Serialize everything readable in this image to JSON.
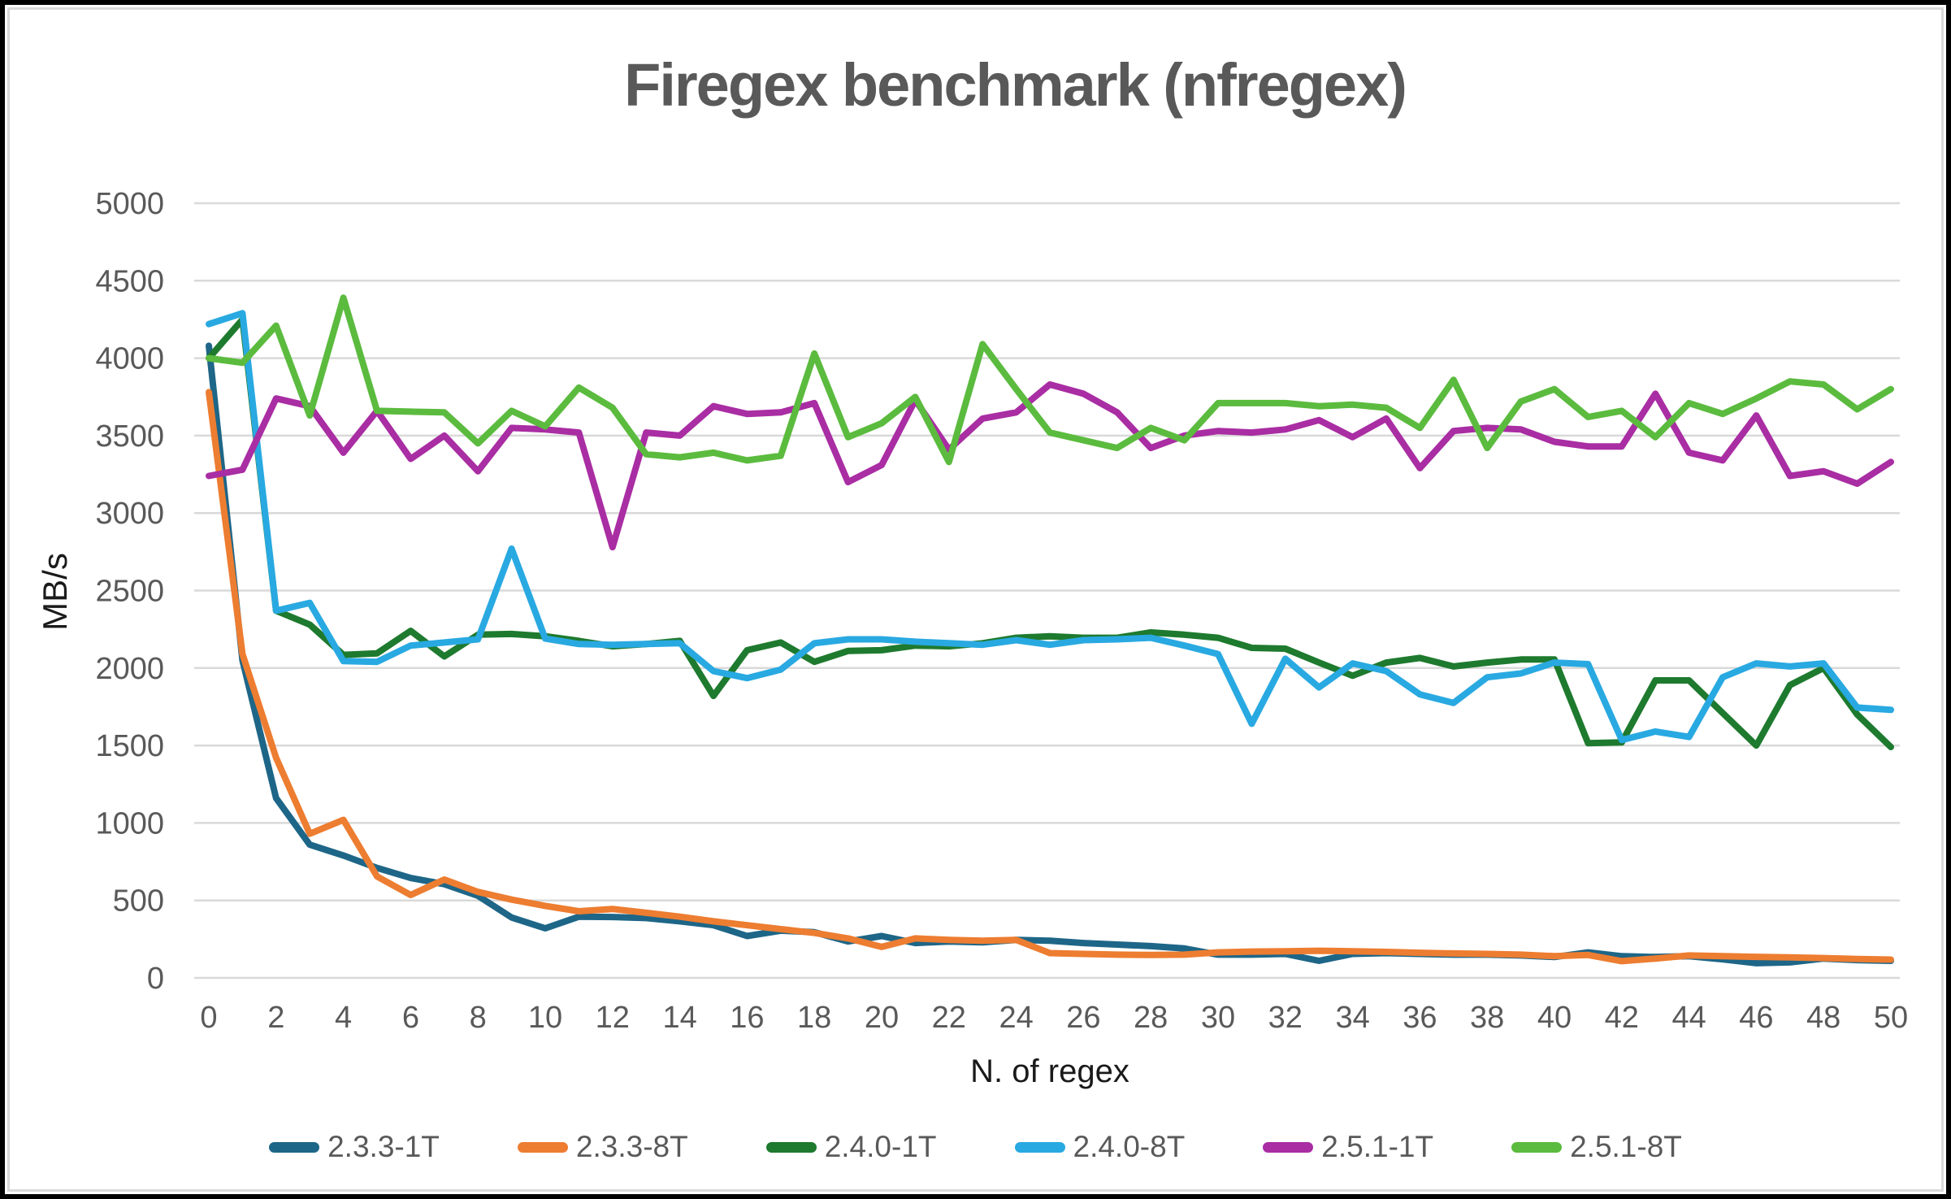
{
  "chart_data": {
    "type": "line",
    "title": "Firegex benchmark (nfregex)",
    "xlabel": "N. of regex",
    "ylabel": "MB/s",
    "x_range": [
      0,
      50
    ],
    "x_tick_step": 2,
    "ylim": [
      0,
      5000
    ],
    "y_tick_step": 500,
    "grid": "horizontal",
    "legend_position": "bottom",
    "gridline_color": "#d9d9d9",
    "tick_label_color": "#595959",
    "title_color": "#595959",
    "series": [
      {
        "name": "2.3.3-1T",
        "color": "#1E6687",
        "values": [
          4080,
          2050,
          1160,
          860,
          790,
          710,
          645,
          605,
          530,
          390,
          320,
          395,
          393,
          386,
          365,
          340,
          270,
          305,
          295,
          235,
          270,
          225,
          235,
          230,
          245,
          240,
          225,
          215,
          205,
          190,
          150,
          150,
          155,
          110,
          155,
          160,
          155,
          150,
          150,
          145,
          135,
          165,
          140,
          135,
          140,
          120,
          95,
          100,
          125,
          115,
          110
        ]
      },
      {
        "name": "2.3.3-8T",
        "color": "#ED7D31",
        "values": [
          3780,
          2090,
          1420,
          930,
          1020,
          655,
          535,
          635,
          555,
          505,
          465,
          430,
          445,
          420,
          395,
          365,
          340,
          315,
          290,
          255,
          200,
          255,
          245,
          240,
          245,
          160,
          155,
          150,
          148,
          150,
          165,
          170,
          172,
          175,
          172,
          168,
          162,
          158,
          155,
          150,
          140,
          148,
          108,
          125,
          145,
          140,
          136,
          132,
          128,
          122,
          118
        ]
      },
      {
        "name": "2.4.0-1T",
        "color": "#1E7A2E",
        "values": [
          4000,
          4250,
          2370,
          2280,
          2085,
          2095,
          2240,
          2075,
          2215,
          2220,
          2205,
          2175,
          2140,
          2155,
          2175,
          1820,
          2115,
          2165,
          2040,
          2110,
          2115,
          2145,
          2140,
          2160,
          2195,
          2205,
          2195,
          2195,
          2230,
          2215,
          2195,
          2130,
          2125,
          2035,
          1950,
          2035,
          2065,
          2010,
          2035,
          2055,
          2055,
          1515,
          1520,
          1920,
          1920,
          1710,
          1500,
          1890,
          2000,
          1700,
          1490
        ]
      },
      {
        "name": "2.4.0-8T",
        "color": "#29A9E1",
        "values": [
          4220,
          4290,
          2370,
          2420,
          2045,
          2040,
          2145,
          2165,
          2185,
          2770,
          2190,
          2155,
          2150,
          2155,
          2160,
          1980,
          1935,
          1990,
          2160,
          2185,
          2185,
          2170,
          2160,
          2150,
          2180,
          2150,
          2180,
          2185,
          2195,
          2145,
          2090,
          1640,
          2060,
          1875,
          2030,
          1980,
          1830,
          1775,
          1940,
          1965,
          2035,
          2025,
          1535,
          1590,
          1555,
          1940,
          2030,
          2010,
          2030,
          1745,
          1730
        ]
      },
      {
        "name": "2.5.1-1T",
        "color": "#A92DA3",
        "values": [
          3240,
          3280,
          3740,
          3690,
          3390,
          3660,
          3350,
          3500,
          3270,
          3550,
          3540,
          3520,
          2780,
          3520,
          3500,
          3690,
          3640,
          3650,
          3710,
          3200,
          3310,
          3730,
          3410,
          3610,
          3650,
          3830,
          3770,
          3650,
          3420,
          3500,
          3530,
          3520,
          3540,
          3600,
          3490,
          3610,
          3290,
          3530,
          3550,
          3540,
          3460,
          3430,
          3430,
          3770,
          3390,
          3340,
          3630,
          3240,
          3270,
          3190,
          3330
        ]
      },
      {
        "name": "2.5.1-8T",
        "color": "#5BBB3E",
        "values": [
          4000,
          3970,
          4210,
          3630,
          4390,
          3660,
          3655,
          3650,
          3450,
          3660,
          3560,
          3810,
          3680,
          3380,
          3360,
          3390,
          3340,
          3370,
          4030,
          3490,
          3580,
          3750,
          3330,
          4090,
          3800,
          3520,
          3470,
          3420,
          3550,
          3470,
          3710,
          3710,
          3710,
          3690,
          3700,
          3680,
          3550,
          3860,
          3420,
          3720,
          3800,
          3620,
          3660,
          3490,
          3710,
          3640,
          3740,
          3850,
          3830,
          3670,
          3800
        ]
      }
    ]
  }
}
